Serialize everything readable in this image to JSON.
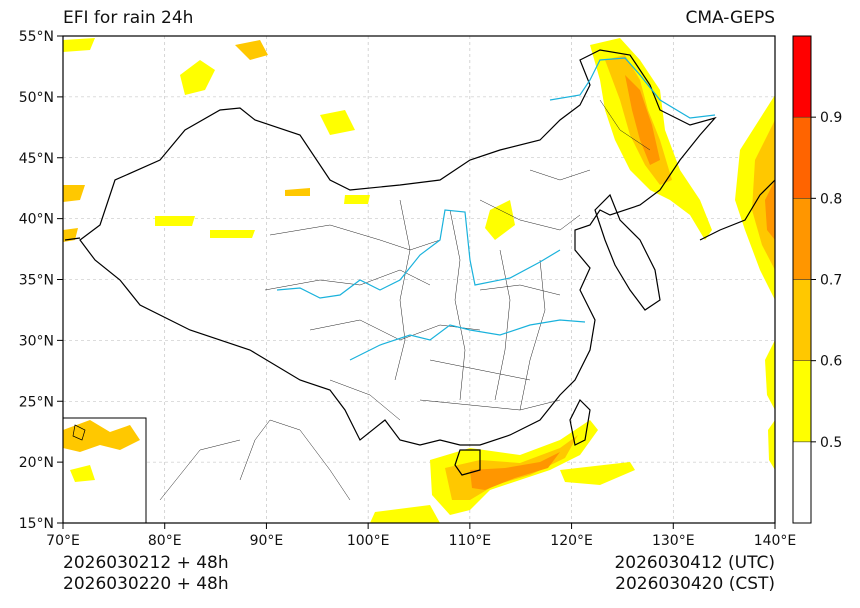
{
  "header": {
    "title": "EFI for rain 24h",
    "model": "CMA-GEPS"
  },
  "footer": {
    "init_utc": "2026030212 + 48h",
    "init_cst": "2026030220 + 48h",
    "valid_utc": "2026030412 (UTC)",
    "valid_cst": "2026030420 (CST)"
  },
  "map": {
    "lon_range": [
      70,
      140
    ],
    "lat_range": [
      15,
      55
    ],
    "lon_ticks": [
      "70°E",
      "80°E",
      "90°E",
      "100°E",
      "110°E",
      "120°E",
      "130°E",
      "140°E"
    ],
    "lat_ticks": [
      "15°N",
      "20°N",
      "25°N",
      "30°N",
      "35°N",
      "40°N",
      "45°N",
      "50°N",
      "55°N"
    ],
    "lon_tick_values": [
      70,
      80,
      90,
      100,
      110,
      120,
      130,
      140
    ],
    "lat_tick_values": [
      15,
      20,
      25,
      30,
      35,
      40,
      45,
      50,
      55
    ]
  },
  "colorbar": {
    "labels": [
      "0.5",
      "0.6",
      "0.7",
      "0.8",
      "0.9"
    ],
    "levels": [
      0.4,
      0.5,
      0.6,
      0.7,
      0.8,
      0.9,
      1.0
    ],
    "colors": [
      "#ffffff",
      "#ffff00",
      "#ffc800",
      "#ff9600",
      "#ff6400",
      "#ff0000"
    ]
  },
  "colors": {
    "river": "#1ab2dc",
    "border": "#000000",
    "grid": "#bbbbbb"
  }
}
